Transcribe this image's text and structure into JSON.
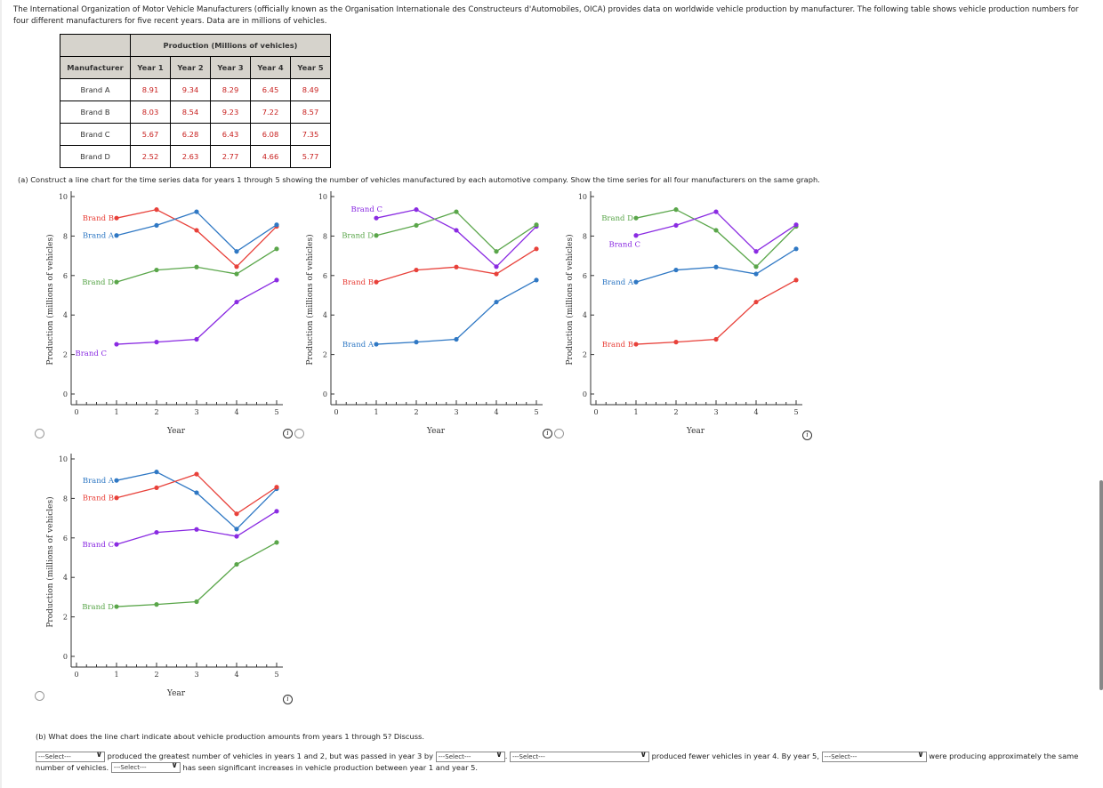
{
  "intro": "The International Organization of Motor Vehicle Manufacturers (officially known as the Organisation Internationale des Constructeurs d'Automobiles, OICA) provides data on worldwide vehicle production by manufacturer. The following table shows vehicle production numbers for four different manufacturers for five recent years. Data are in millions of vehicles.",
  "table": {
    "group_header": "Production (Millions of vehicles)",
    "headers": [
      "Manufacturer",
      "Year 1",
      "Year 2",
      "Year 3",
      "Year 4",
      "Year 5"
    ],
    "rows": [
      [
        "Brand A",
        "8.91",
        "9.34",
        "8.29",
        "6.45",
        "8.49"
      ],
      [
        "Brand B",
        "8.03",
        "8.54",
        "9.23",
        "7.22",
        "8.57"
      ],
      [
        "Brand C",
        "5.67",
        "6.28",
        "6.43",
        "6.08",
        "7.35"
      ],
      [
        "Brand D",
        "2.52",
        "2.63",
        "2.77",
        "4.66",
        "5.77"
      ]
    ]
  },
  "part_a": "(a)  Construct a line chart for the time series data for years 1 through 5 showing the number of vehicles manufactured by each automotive company. Show the time series for all four manufacturers on the same graph.",
  "colors": {
    "Brand A": "#2f78c4",
    "Brand B": "#e8413a",
    "Brand C": "#8a2be2",
    "Brand D": "#5aa64a"
  },
  "chart_data": [
    {
      "type": "line",
      "xlabel": "Year",
      "ylabel": "Production (millions of vehicles)",
      "xlim": [
        0,
        5
      ],
      "ylim": [
        0,
        10
      ],
      "x": [
        1,
        2,
        3,
        4,
        5
      ],
      "xticks": [
        "0",
        "1",
        "2",
        "3",
        "4",
        "5"
      ],
      "yticks": [
        "0",
        "2",
        "4",
        "6",
        "8",
        "10"
      ],
      "series": [
        {
          "name": "Brand B",
          "values": [
            8.91,
            9.34,
            8.29,
            6.45,
            8.49
          ]
        },
        {
          "name": "Brand A",
          "values": [
            8.03,
            8.54,
            9.23,
            7.22,
            8.57
          ]
        },
        {
          "name": "Brand D",
          "values": [
            5.67,
            6.28,
            6.43,
            6.08,
            7.35
          ]
        },
        {
          "name": "Brand C",
          "values": [
            2.52,
            2.63,
            2.77,
            4.66,
            5.77
          ]
        }
      ]
    },
    {
      "type": "line",
      "xlabel": "Year",
      "ylabel": "Production (millions of vehicles)",
      "xlim": [
        0,
        5
      ],
      "ylim": [
        0,
        10
      ],
      "x": [
        1,
        2,
        3,
        4,
        5
      ],
      "xticks": [
        "0",
        "1",
        "2",
        "3",
        "4",
        "5"
      ],
      "yticks": [
        "0",
        "2",
        "4",
        "6",
        "8",
        "10"
      ],
      "series": [
        {
          "name": "Brand C",
          "values": [
            8.91,
            9.34,
            8.29,
            6.45,
            8.49
          ]
        },
        {
          "name": "Brand D",
          "values": [
            8.03,
            8.54,
            9.23,
            7.22,
            8.57
          ]
        },
        {
          "name": "Brand B",
          "values": [
            5.67,
            6.28,
            6.43,
            6.08,
            7.35
          ]
        },
        {
          "name": "Brand A",
          "values": [
            2.52,
            2.63,
            2.77,
            4.66,
            5.77
          ]
        }
      ]
    },
    {
      "type": "line",
      "xlabel": "Year",
      "ylabel": "Production (millions of vehicles)",
      "xlim": [
        0,
        5
      ],
      "ylim": [
        0,
        10
      ],
      "x": [
        1,
        2,
        3,
        4,
        5
      ],
      "xticks": [
        "0",
        "1",
        "2",
        "3",
        "4",
        "5"
      ],
      "yticks": [
        "0",
        "2",
        "4",
        "6",
        "8",
        "10"
      ],
      "series": [
        {
          "name": "Brand D",
          "values": [
            8.91,
            9.34,
            8.29,
            6.45,
            8.49
          ]
        },
        {
          "name": "Brand C",
          "values": [
            8.03,
            8.54,
            9.23,
            7.22,
            8.57
          ]
        },
        {
          "name": "Brand A",
          "values": [
            5.67,
            6.28,
            6.43,
            6.08,
            7.35
          ]
        },
        {
          "name": "Brand B",
          "values": [
            2.52,
            2.63,
            2.77,
            4.66,
            5.77
          ]
        }
      ]
    },
    {
      "type": "line",
      "xlabel": "Year",
      "ylabel": "Production (millions of vehicles)",
      "xlim": [
        0,
        5
      ],
      "ylim": [
        0,
        10
      ],
      "x": [
        1,
        2,
        3,
        4,
        5
      ],
      "xticks": [
        "0",
        "1",
        "2",
        "3",
        "4",
        "5"
      ],
      "yticks": [
        "0",
        "2",
        "4",
        "6",
        "8",
        "10"
      ],
      "series": [
        {
          "name": "Brand A",
          "values": [
            8.91,
            9.34,
            8.29,
            6.45,
            8.49
          ]
        },
        {
          "name": "Brand B",
          "values": [
            8.03,
            8.54,
            9.23,
            7.22,
            8.57
          ]
        },
        {
          "name": "Brand C",
          "values": [
            5.67,
            6.28,
            6.43,
            6.08,
            7.35
          ]
        },
        {
          "name": "Brand D",
          "values": [
            2.52,
            2.63,
            2.77,
            4.66,
            5.77
          ]
        }
      ]
    }
  ],
  "part_b": {
    "question": "(b)  What does the line chart indicate about vehicle production amounts from years 1 through 5? Discuss.",
    "select_placeholder": "---Select---",
    "t1": "produced the greatest number of vehicles in years 1 and 2, but was passed in year 3 by",
    "t2": ".",
    "t3": "produced fewer vehicles in year 4. By year 5,",
    "t4": "were producing approximately the same number of vehicles.",
    "t5": "has seen significant increases in vehicle production between year 1 and year 5."
  },
  "info_icon": "i"
}
